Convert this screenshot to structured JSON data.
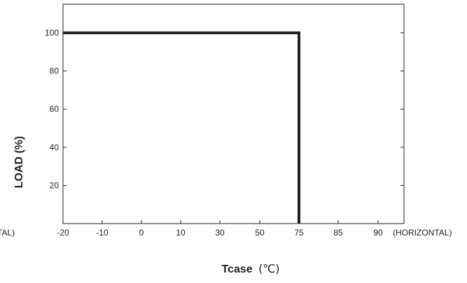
{
  "chart_data": {
    "type": "line",
    "xlabel": "Tcase",
    "xlabel_unit": "(℃)",
    "ylabel": "LOAD (%)",
    "x_categories": [
      "-20",
      "-10",
      "0",
      "10",
      "30",
      "50",
      "75",
      "85",
      "90"
    ],
    "y_ticks": [
      20,
      40,
      60,
      80,
      100
    ],
    "ylim": [
      0,
      115
    ],
    "grid": false,
    "x_note_left": "TAL)",
    "x_note_right": "(HORIZONTAL)",
    "series": [
      {
        "x": [
          "-20",
          "75",
          "75"
        ],
        "y": [
          100,
          100,
          0
        ]
      }
    ],
    "colors": {
      "line": "#231f20",
      "axis": "#231f20"
    }
  }
}
